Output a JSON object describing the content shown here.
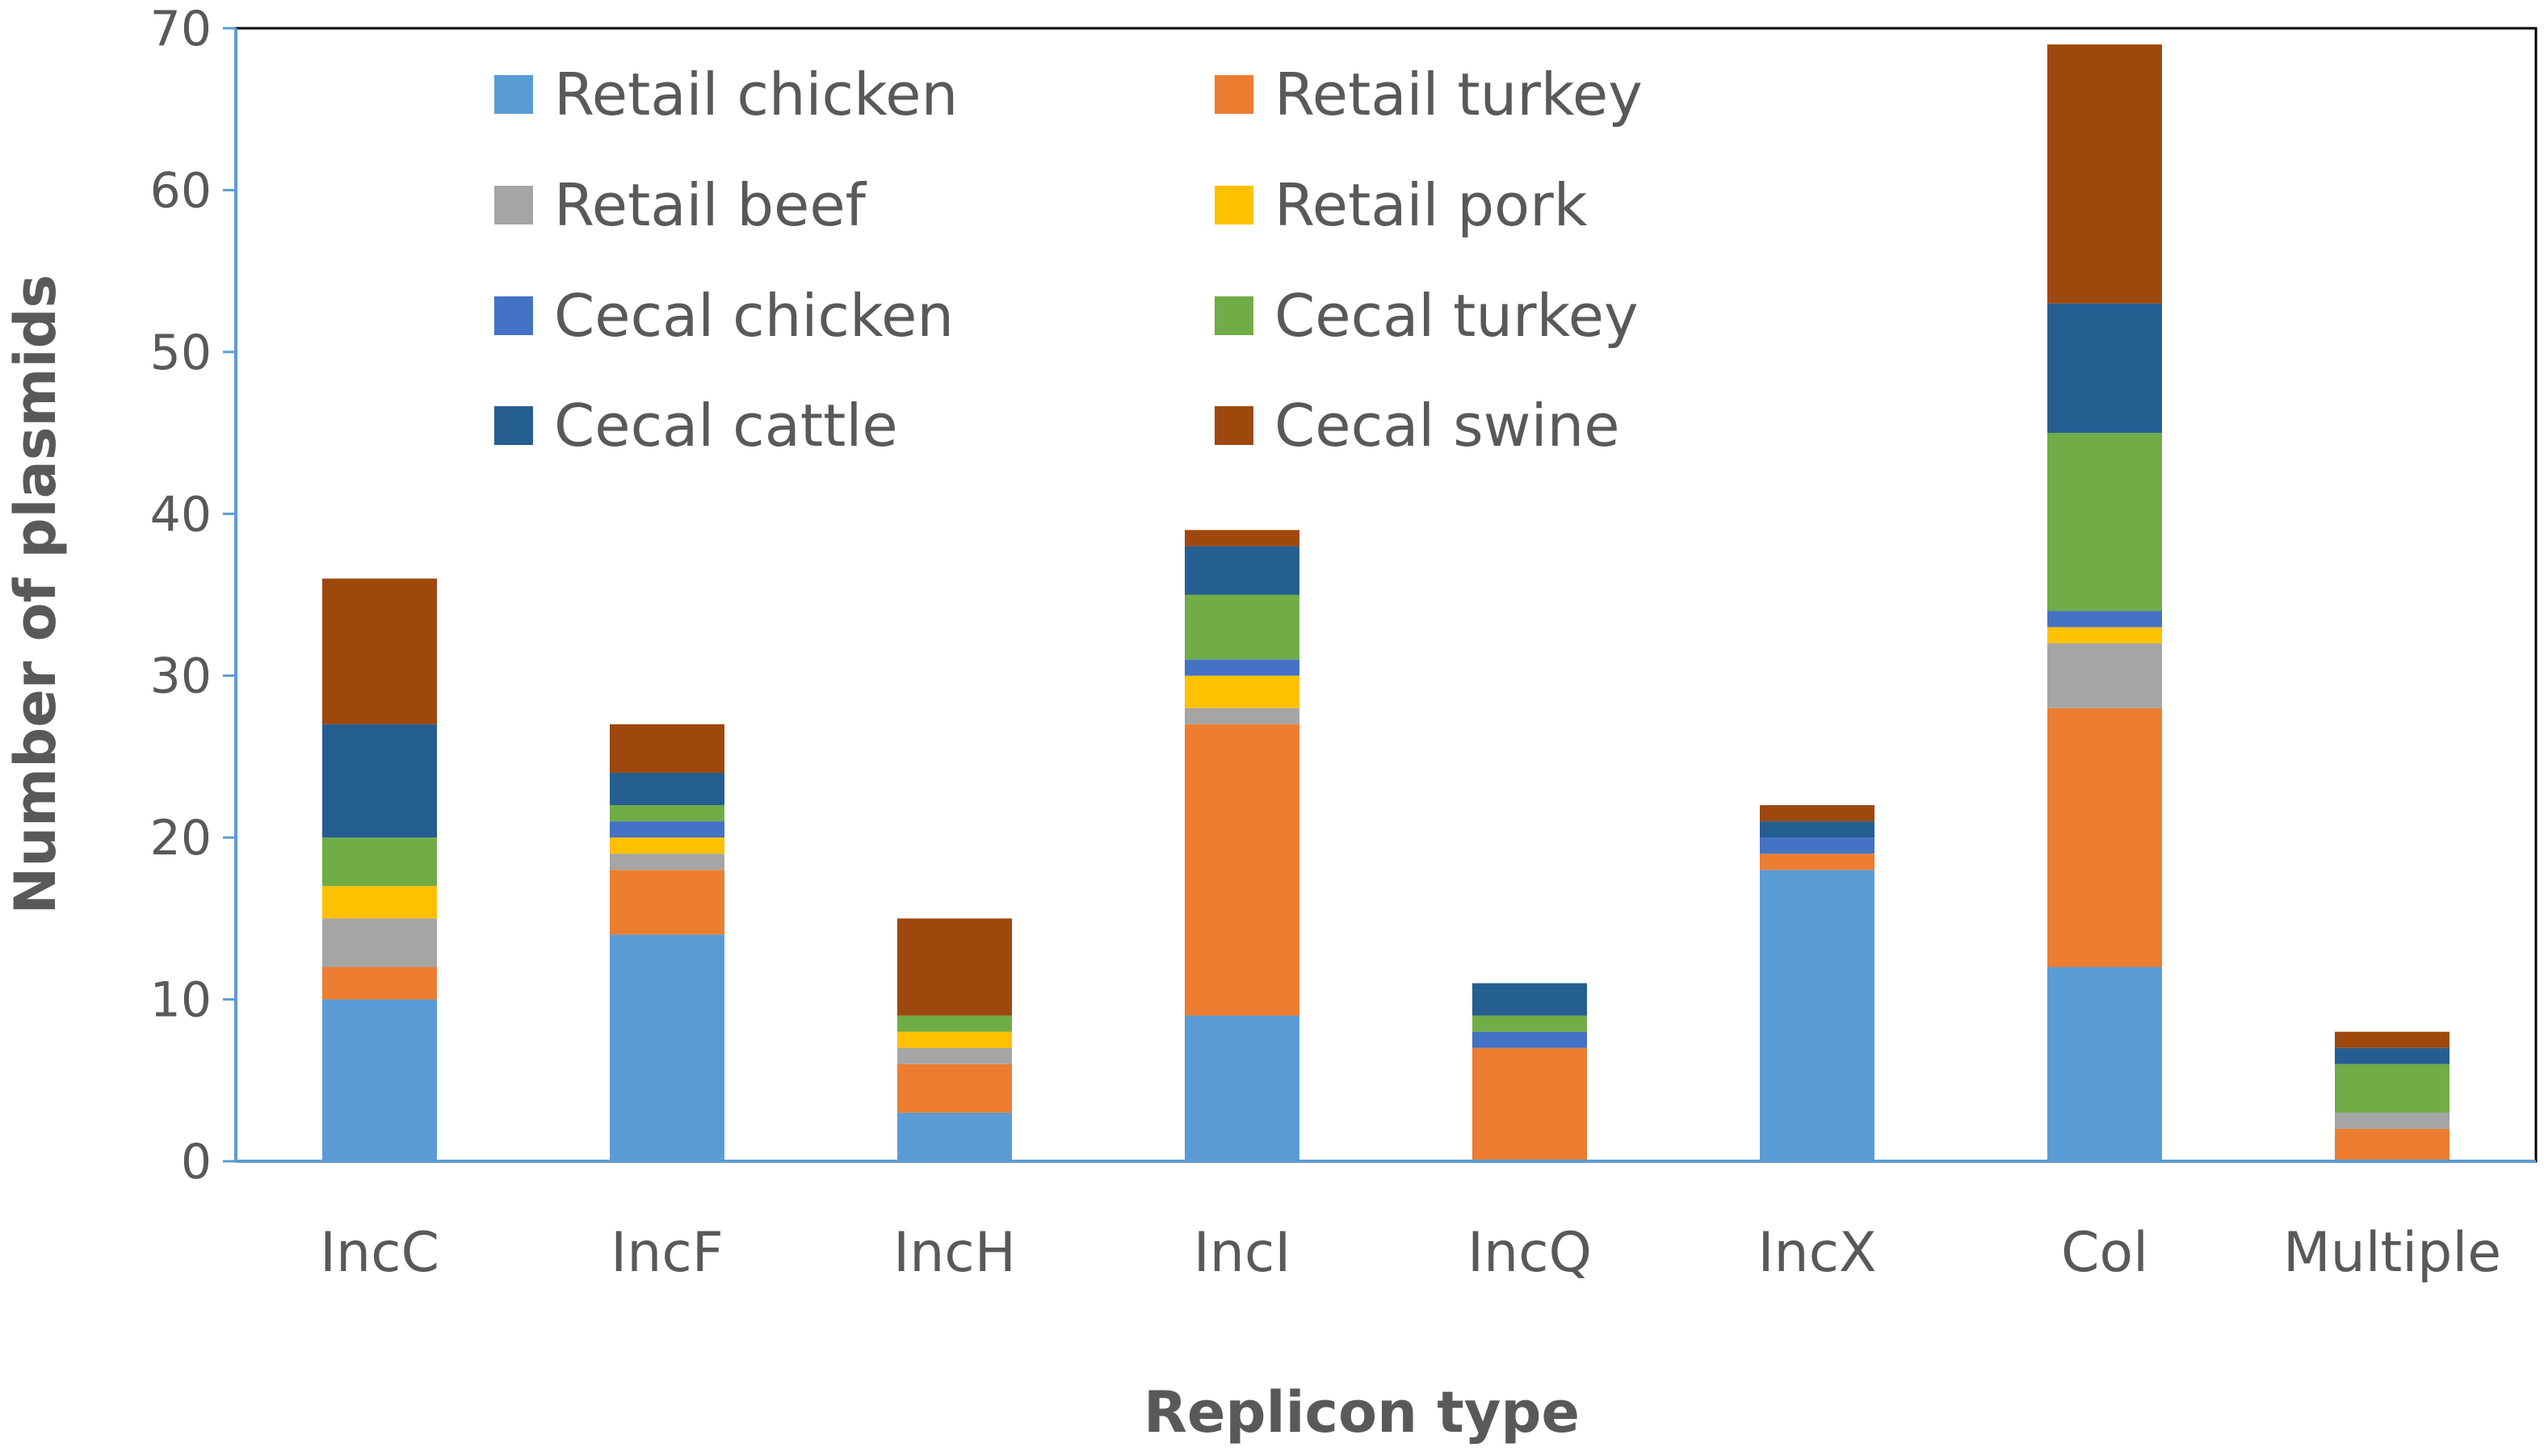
{
  "chart_data": {
    "type": "bar",
    "stacked": true,
    "xlabel": "Replicon type",
    "ylabel": "Number of plasmids",
    "ylim": [
      0,
      70
    ],
    "yticks": [
      0,
      10,
      20,
      30,
      40,
      50,
      60,
      70
    ],
    "grid": false,
    "legend_position": "top-left inside",
    "categories": [
      "IncC",
      "IncF",
      "IncH",
      "IncI",
      "IncQ",
      "IncX",
      "Col",
      "Multiple"
    ],
    "series": [
      {
        "name": "Retail chicken",
        "color": "#5B9BD5",
        "values": [
          10,
          14,
          3,
          9,
          0,
          18,
          12,
          0
        ]
      },
      {
        "name": "Retail turkey",
        "color": "#ED7D31",
        "values": [
          2,
          4,
          3,
          18,
          7,
          1,
          16,
          2
        ]
      },
      {
        "name": "Retail beef",
        "color": "#A5A5A5",
        "values": [
          3,
          1,
          1,
          1,
          0,
          0,
          4,
          1
        ]
      },
      {
        "name": "Retail pork",
        "color": "#FFC000",
        "values": [
          2,
          1,
          1,
          2,
          0,
          0,
          1,
          0
        ]
      },
      {
        "name": "Cecal chicken",
        "color": "#4472C4",
        "values": [
          0,
          1,
          0,
          1,
          1,
          1,
          1,
          0
        ]
      },
      {
        "name": "Cecal turkey",
        "color": "#70AD47",
        "values": [
          3,
          1,
          1,
          4,
          1,
          0,
          11,
          3
        ]
      },
      {
        "name": "Cecal cattle",
        "color": "#255E91",
        "values": [
          7,
          2,
          0,
          3,
          2,
          1,
          8,
          1
        ]
      },
      {
        "name": "Cecal swine",
        "color": "#9E480E",
        "values": [
          9,
          3,
          6,
          1,
          0,
          1,
          16,
          1
        ]
      }
    ]
  }
}
